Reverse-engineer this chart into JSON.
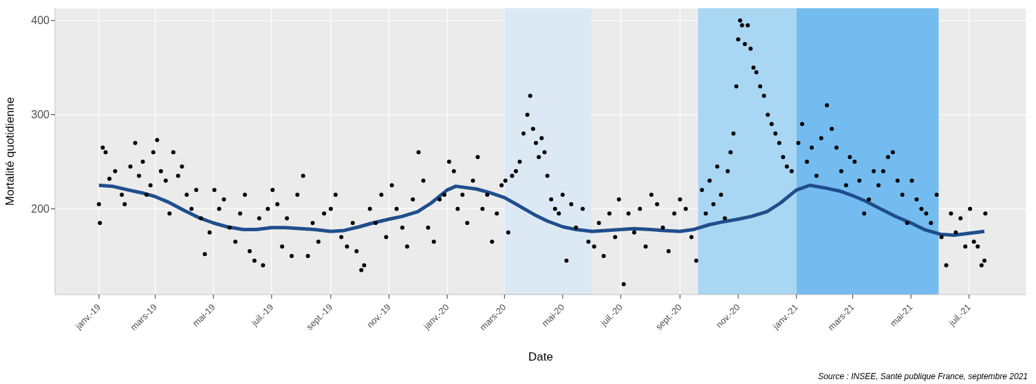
{
  "chart_data": {
    "type": "scatter",
    "xlabel": "Date",
    "ylabel": "Mortalité quotidienne",
    "annotations": [
      "Source : INSEE, Santé publique France, septembre 2021"
    ],
    "xlim": [
      "2018-11-16",
      "2021-08-30"
    ],
    "ylim": [
      109,
      413
    ],
    "xticks": [
      {
        "value": "2019-01-01",
        "label": "janv.-19"
      },
      {
        "value": "2019-03-01",
        "label": "mars-19"
      },
      {
        "value": "2019-05-01",
        "label": "mai-19"
      },
      {
        "value": "2019-07-01",
        "label": "juil.-19"
      },
      {
        "value": "2019-09-01",
        "label": "sept.-19"
      },
      {
        "value": "2019-11-01",
        "label": "nov.-19"
      },
      {
        "value": "2020-01-01",
        "label": "janv.-20"
      },
      {
        "value": "2020-03-01",
        "label": "mars-20"
      },
      {
        "value": "2020-05-01",
        "label": "mai-20"
      },
      {
        "value": "2020-07-01",
        "label": "juil.-20"
      },
      {
        "value": "2020-09-01",
        "label": "sept.-20"
      },
      {
        "value": "2020-11-01",
        "label": "nov.-20"
      },
      {
        "value": "2021-01-01",
        "label": "janv.-21"
      },
      {
        "value": "2021-03-01",
        "label": "mars-21"
      },
      {
        "value": "2021-05-01",
        "label": "mai-21"
      },
      {
        "value": "2021-07-01",
        "label": "juil.-21"
      }
    ],
    "yticks": [
      200,
      300,
      400
    ],
    "grid": true,
    "bands": [
      {
        "axis": "x",
        "from": "2020-03-01",
        "to": "2020-05-31",
        "color": "#dce9f4"
      },
      {
        "axis": "x",
        "from": "2020-09-20",
        "to": "2021-01-01",
        "color": "#a9d6f2"
      },
      {
        "axis": "x",
        "from": "2021-01-01",
        "to": "2021-05-30",
        "color": "#74bcf0"
      }
    ],
    "series": [
      {
        "marker": "circle",
        "color": "#000000",
        "x": [
          "2019-01-01",
          "2019-01-02",
          "2019-01-05",
          "2019-01-08",
          "2019-01-12",
          "2019-01-18",
          "2019-01-25",
          "2019-01-28",
          "2019-02-03",
          "2019-02-08",
          "2019-02-12",
          "2019-02-16",
          "2019-02-20",
          "2019-02-24",
          "2019-02-27",
          "2019-03-03",
          "2019-03-07",
          "2019-03-12",
          "2019-03-16",
          "2019-03-20",
          "2019-03-25",
          "2019-03-29",
          "2019-04-03",
          "2019-04-08",
          "2019-04-13",
          "2019-04-18",
          "2019-04-22",
          "2019-04-27",
          "2019-05-02",
          "2019-05-07",
          "2019-05-12",
          "2019-05-18",
          "2019-05-24",
          "2019-05-29",
          "2019-06-03",
          "2019-06-08",
          "2019-06-13",
          "2019-06-18",
          "2019-06-22",
          "2019-06-27",
          "2019-07-02",
          "2019-07-07",
          "2019-07-12",
          "2019-07-17",
          "2019-07-22",
          "2019-07-28",
          "2019-08-03",
          "2019-08-08",
          "2019-08-13",
          "2019-08-19",
          "2019-08-25",
          "2019-09-01",
          "2019-09-06",
          "2019-09-12",
          "2019-09-18",
          "2019-09-24",
          "2019-09-28",
          "2019-10-03",
          "2019-10-06",
          "2019-10-12",
          "2019-10-18",
          "2019-10-24",
          "2019-10-29",
          "2019-11-04",
          "2019-11-09",
          "2019-11-15",
          "2019-11-20",
          "2019-11-26",
          "2019-12-02",
          "2019-12-07",
          "2019-12-12",
          "2019-12-18",
          "2019-12-24",
          "2019-12-29",
          "2020-01-03",
          "2020-01-08",
          "2020-01-12",
          "2020-01-17",
          "2020-01-22",
          "2020-01-28",
          "2020-02-02",
          "2020-02-07",
          "2020-02-12",
          "2020-02-17",
          "2020-02-22",
          "2020-02-27",
          "2020-03-02",
          "2020-03-05",
          "2020-03-09",
          "2020-03-13",
          "2020-03-17",
          "2020-03-21",
          "2020-03-25",
          "2020-03-28",
          "2020-03-31",
          "2020-04-03",
          "2020-04-06",
          "2020-04-09",
          "2020-04-12",
          "2020-04-15",
          "2020-04-19",
          "2020-04-23",
          "2020-04-27",
          "2020-05-01",
          "2020-05-05",
          "2020-05-10",
          "2020-05-15",
          "2020-05-22",
          "2020-05-28",
          "2020-06-03",
          "2020-06-08",
          "2020-06-13",
          "2020-06-19",
          "2020-06-25",
          "2020-06-29",
          "2020-07-04",
          "2020-07-09",
          "2020-07-15",
          "2020-07-21",
          "2020-07-27",
          "2020-08-02",
          "2020-08-08",
          "2020-08-14",
          "2020-08-20",
          "2020-08-26",
          "2020-09-01",
          "2020-09-07",
          "2020-09-13",
          "2020-09-18",
          "2020-09-24",
          "2020-09-28",
          "2020-10-02",
          "2020-10-06",
          "2020-10-10",
          "2020-10-14",
          "2020-10-18",
          "2020-10-21",
          "2020-10-24",
          "2020-10-27",
          "2020-10-30",
          "2020-11-01",
          "2020-11-03",
          "2020-11-05",
          "2020-11-08",
          "2020-11-11",
          "2020-11-14",
          "2020-11-17",
          "2020-11-20",
          "2020-11-24",
          "2020-11-28",
          "2020-12-02",
          "2020-12-06",
          "2020-12-10",
          "2020-12-14",
          "2020-12-18",
          "2020-12-22",
          "2020-12-27",
          "2021-01-03",
          "2021-01-07",
          "2021-01-12",
          "2021-01-17",
          "2021-01-22",
          "2021-01-27",
          "2021-02-02",
          "2021-02-07",
          "2021-02-12",
          "2021-02-17",
          "2021-02-22",
          "2021-02-26",
          "2021-03-03",
          "2021-03-08",
          "2021-03-13",
          "2021-03-18",
          "2021-03-23",
          "2021-03-28",
          "2021-04-02",
          "2021-04-07",
          "2021-04-12",
          "2021-04-17",
          "2021-04-22",
          "2021-04-27",
          "2021-05-02",
          "2021-05-07",
          "2021-05-12",
          "2021-05-17",
          "2021-05-22",
          "2021-05-28",
          "2021-06-02",
          "2021-06-07",
          "2021-06-12",
          "2021-06-17",
          "2021-06-22",
          "2021-06-27",
          "2021-07-02",
          "2021-07-06",
          "2021-07-10",
          "2021-07-14",
          "2021-07-17",
          "2021-07-18"
        ],
        "values": [
          205,
          185,
          265,
          260,
          232,
          240,
          215,
          205,
          245,
          270,
          235,
          250,
          215,
          225,
          260,
          273,
          240,
          230,
          195,
          260,
          235,
          245,
          215,
          200,
          220,
          190,
          152,
          175,
          220,
          200,
          210,
          180,
          165,
          195,
          215,
          155,
          145,
          190,
          140,
          200,
          220,
          205,
          160,
          190,
          150,
          215,
          235,
          150,
          185,
          165,
          195,
          200,
          215,
          170,
          160,
          185,
          155,
          135,
          140,
          200,
          185,
          215,
          170,
          225,
          200,
          180,
          160,
          210,
          260,
          230,
          180,
          165,
          210,
          215,
          250,
          240,
          200,
          215,
          185,
          230,
          255,
          200,
          215,
          165,
          195,
          225,
          230,
          175,
          235,
          240,
          250,
          280,
          300,
          320,
          285,
          270,
          255,
          275,
          260,
          235,
          210,
          200,
          195,
          215,
          145,
          205,
          180,
          200,
          165,
          160,
          185,
          150,
          195,
          170,
          210,
          120,
          195,
          175,
          200,
          160,
          215,
          205,
          180,
          155,
          195,
          210,
          200,
          170,
          145,
          220,
          195,
          230,
          205,
          245,
          215,
          190,
          240,
          260,
          280,
          330,
          380,
          400,
          395,
          375,
          395,
          370,
          350,
          345,
          330,
          320,
          300,
          290,
          280,
          270,
          255,
          245,
          240,
          270,
          290,
          250,
          265,
          235,
          275,
          310,
          285,
          265,
          240,
          225,
          255,
          250,
          230,
          195,
          210,
          240,
          225,
          240,
          255,
          260,
          230,
          215,
          185,
          230,
          210,
          200,
          195,
          185,
          215,
          170,
          140,
          195,
          175,
          190,
          160,
          200,
          165,
          160,
          140,
          145,
          195
        ]
      },
      {
        "type": "line",
        "color": "#1f4e8c",
        "x": [
          "2019-01-01",
          "2019-01-15",
          "2019-02-01",
          "2019-02-15",
          "2019-03-01",
          "2019-03-15",
          "2019-04-01",
          "2019-04-15",
          "2019-05-01",
          "2019-05-15",
          "2019-06-01",
          "2019-06-15",
          "2019-07-01",
          "2019-07-15",
          "2019-08-01",
          "2019-08-15",
          "2019-09-01",
          "2019-09-15",
          "2019-10-01",
          "2019-10-15",
          "2019-11-01",
          "2019-11-15",
          "2019-12-01",
          "2019-12-15",
          "2020-01-01",
          "2020-01-10",
          "2020-02-01",
          "2020-02-15",
          "2020-03-01",
          "2020-03-15",
          "2020-04-01",
          "2020-04-15",
          "2020-05-01",
          "2020-05-15",
          "2020-06-01",
          "2020-06-15",
          "2020-07-01",
          "2020-07-15",
          "2020-08-01",
          "2020-08-15",
          "2020-09-01",
          "2020-09-15",
          "2020-10-01",
          "2020-10-15",
          "2020-11-01",
          "2020-11-15",
          "2020-12-01",
          "2020-12-15",
          "2021-01-01",
          "2021-01-15",
          "2021-02-01",
          "2021-02-15",
          "2021-03-01",
          "2021-03-15",
          "2021-04-01",
          "2021-04-15",
          "2021-05-01",
          "2021-05-15",
          "2021-06-01",
          "2021-06-15",
          "2021-07-01",
          "2021-07-17"
        ],
        "values": [
          225,
          224,
          220,
          217,
          213,
          207,
          198,
          191,
          185,
          181,
          178,
          178,
          180,
          180,
          179,
          178,
          176,
          177,
          181,
          185,
          189,
          192,
          197,
          206,
          220,
          224,
          221,
          217,
          212,
          204,
          194,
          187,
          181,
          178,
          176,
          177,
          178,
          179,
          178,
          177,
          176,
          178,
          183,
          186,
          189,
          192,
          197,
          206,
          220,
          225,
          222,
          219,
          214,
          208,
          199,
          192,
          185,
          178,
          173,
          172,
          174,
          176
        ]
      }
    ]
  }
}
